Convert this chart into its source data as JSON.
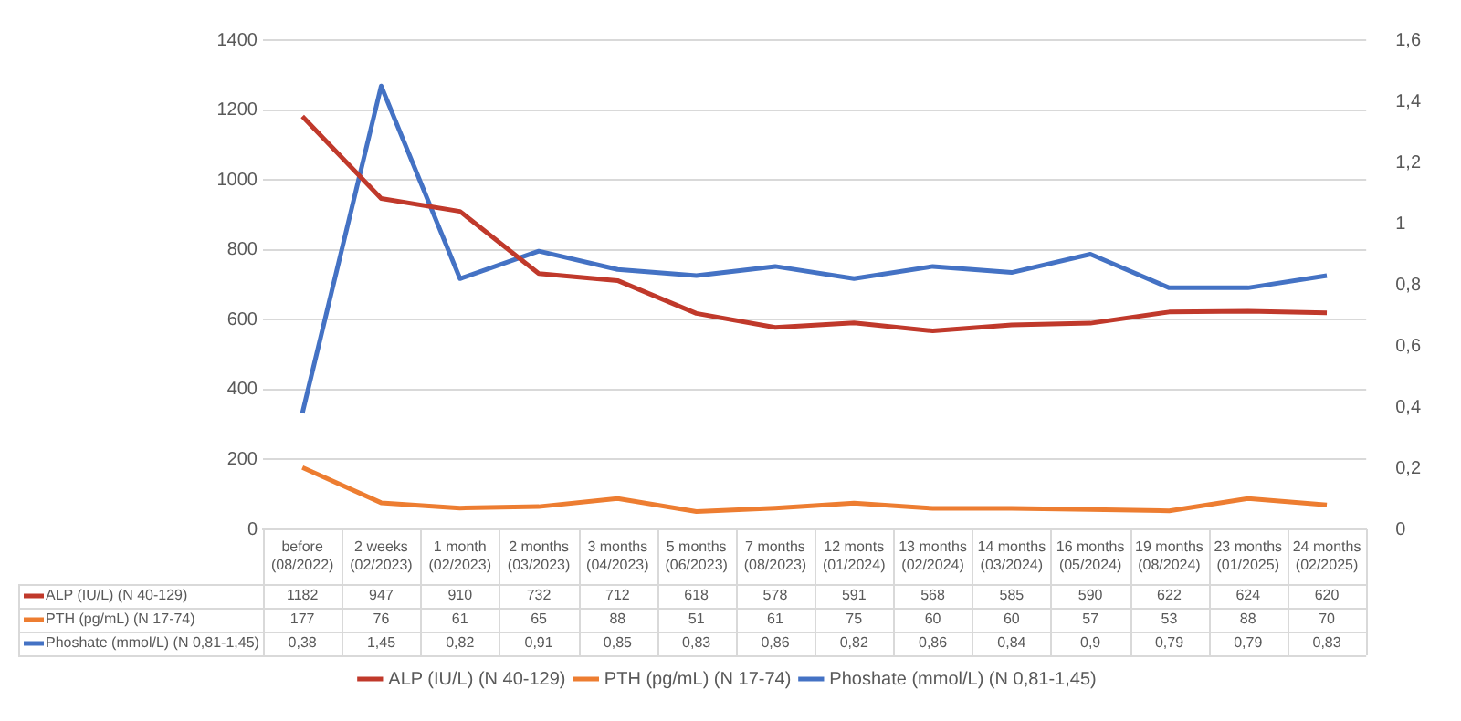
{
  "chart_data": {
    "type": "line",
    "categories": [
      "before (08/2022)",
      "2 weeks (02/2023)",
      "1 month (02/2023)",
      "2 months (03/2023)",
      "3 months (04/2023)",
      "5 months (06/2023)",
      "7 months (08/2023)",
      "12 monts (01/2024)",
      "13 months (02/2024)",
      "14 months (03/2024)",
      "16 months (05/2024)",
      "19 months (08/2024)",
      "23 months (01/2025)",
      "24 months (02/2025)"
    ],
    "series": [
      {
        "name": "ALP (IU/L) (N 40-129)",
        "color": "#c0392b",
        "values": [
          1182,
          947,
          910,
          732,
          712,
          618,
          578,
          591,
          568,
          585,
          590,
          622,
          624,
          620
        ]
      },
      {
        "name": "PTH (pg/mL) (N 17-74)",
        "color": "#ed7d31",
        "values": [
          177,
          76,
          61,
          65,
          88,
          51,
          61,
          75,
          60,
          60,
          57,
          53,
          88,
          70
        ]
      },
      {
        "name": "Phoshate (mmol/L) (N 0,81-1,45)",
        "color": "#4472c4",
        "axis": "y2",
        "values": [
          0.38,
          1.45,
          0.82,
          0.91,
          0.85,
          0.83,
          0.86,
          0.82,
          0.86,
          0.84,
          0.9,
          0.79,
          0.79,
          0.83
        ],
        "value_labels": [
          "0,38",
          "1,45",
          "0,82",
          "0,91",
          "0,85",
          "0,83",
          "0,86",
          "0,82",
          "0,86",
          "0,84",
          "0,9",
          "0,79",
          "0,79",
          "0,83"
        ]
      }
    ],
    "ylim": [
      0,
      1400
    ],
    "yticks": [
      0,
      200,
      400,
      600,
      800,
      1000,
      1200,
      1400
    ],
    "y2lim": [
      0,
      1.6
    ],
    "y2ticks": [
      0,
      {
        "value": 0.2,
        "label": "0,2"
      },
      {
        "value": 0.4,
        "label": "0,4"
      },
      {
        "value": 0.6,
        "label": "0,6"
      },
      {
        "value": 0.8,
        "label": "0,8"
      },
      1,
      {
        "value": 1.2,
        "label": "1,2"
      },
      {
        "value": 1.4,
        "label": "1,4"
      },
      {
        "value": 1.6,
        "label": "1,6"
      }
    ],
    "grid": "y",
    "legend": "bottom",
    "data_labels": true,
    "marker": "none",
    "line_style": "solid"
  }
}
